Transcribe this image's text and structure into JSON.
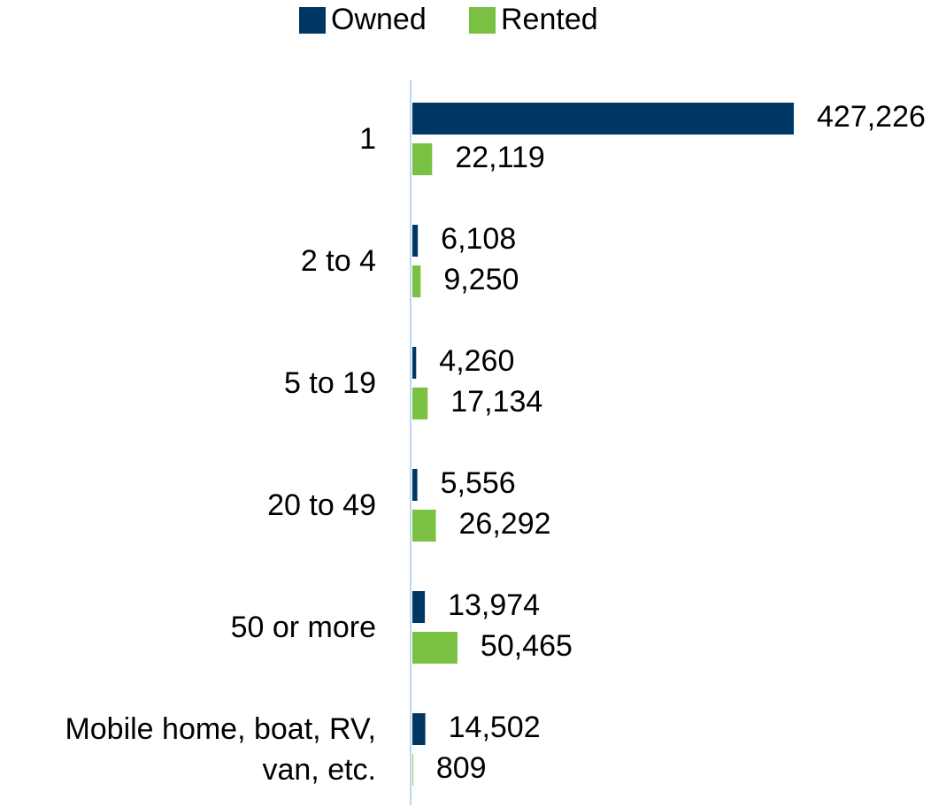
{
  "chart_data": {
    "type": "bar",
    "orientation": "horizontal",
    "categories": [
      "1",
      "2 to 4",
      "5 to 19",
      "20 to 49",
      "50 or more",
      "Mobile home, boat, RV, van, etc."
    ],
    "series": [
      {
        "name": "Owned",
        "color": "#003865",
        "values": [
          427226,
          6108,
          4260,
          5556,
          13974,
          14502
        ],
        "value_labels": [
          "427,226",
          "6,108",
          "4,260",
          "5,556",
          "13,974",
          "14,502"
        ]
      },
      {
        "name": "Rented",
        "color": "#7ac143",
        "values": [
          22119,
          9250,
          17134,
          26292,
          50465,
          809
        ],
        "value_labels": [
          "22,119",
          "9,250",
          "17,134",
          "26,292",
          "50,465",
          "809"
        ]
      }
    ],
    "legend": "top"
  }
}
